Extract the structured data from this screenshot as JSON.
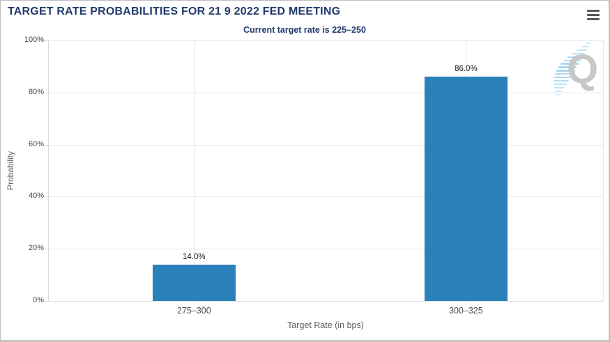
{
  "header": {
    "title": "TARGET RATE PROBABILITIES FOR 21 9 2022 FED MEETING",
    "subtitle": "Current target rate is 225–250"
  },
  "watermark": {
    "letter": "Q"
  },
  "colors": {
    "title_navy": "#213a6b",
    "bar_blue": "#2a80b9",
    "grid": "#e7e7e7",
    "axis": "#d9d9d9",
    "tick_label": "#4a4a4a",
    "axis_title": "#5d5d5d",
    "value_label": "#141414",
    "watermark_q": "#c7c7c7",
    "watermark_dash": "#9ed3f0",
    "border": "#bdbdbd",
    "menu_icon": "#59595b"
  },
  "chart_data": {
    "type": "bar",
    "title": "TARGET RATE PROBABILITIES FOR 21 9 2022 FED MEETING",
    "subtitle": "Current target rate is 225–250",
    "categories": [
      "275–300",
      "300–325"
    ],
    "values": [
      14.0,
      86.0
    ],
    "value_labels": [
      "14.0%",
      "86.0%"
    ],
    "xlabel": "Target Rate (in bps)",
    "ylabel": "Probability",
    "ylim": [
      0,
      100
    ],
    "yticks": [
      0,
      20,
      40,
      60,
      80,
      100
    ],
    "ytick_labels": [
      "0%",
      "20%",
      "40%",
      "60%",
      "80%",
      "100%"
    ],
    "grid": true,
    "legend_position": "none",
    "bar_color": "#2a80b9"
  }
}
